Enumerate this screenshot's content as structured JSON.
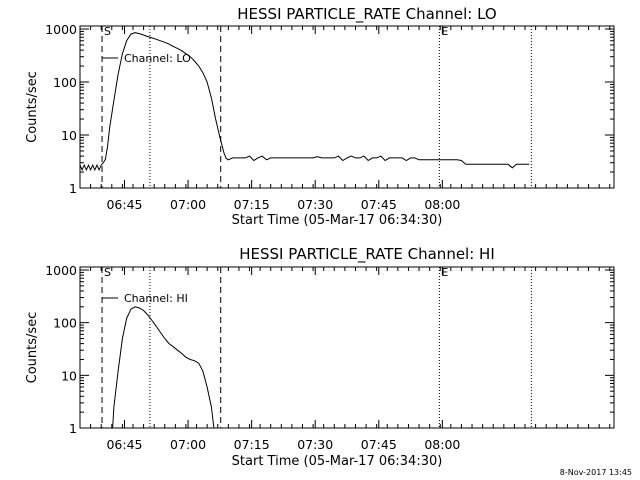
{
  "footer": {
    "timestamp": "8-Nov-2017 13:45"
  },
  "chart_data": [
    {
      "type": "line",
      "title": "HESSI PARTICLE_RATE Channel: LO",
      "xlabel": "Start Time (05-Mar-17 06:34:30)",
      "ylabel": "Counts/sec",
      "yscale": "log",
      "ylim": [
        1,
        1000
      ],
      "xlim_min": [
        0,
        126
      ],
      "x_ticks": [
        {
          "label": "06:45",
          "min": 10.5
        },
        {
          "label": "07:00",
          "min": 25.5
        },
        {
          "label": "07:15",
          "min": 40.5
        },
        {
          "label": "07:30",
          "min": 55.5
        },
        {
          "label": "07:45",
          "min": 70.5
        },
        {
          "label": "08:00",
          "min": 85.5
        }
      ],
      "y_ticks": [
        {
          "label": "1",
          "v": 1
        },
        {
          "label": "10",
          "v": 10
        },
        {
          "label": "100",
          "v": 100
        },
        {
          "label": "1000",
          "v": 1000
        }
      ],
      "legend": "Channel: LO",
      "markers": [
        {
          "label": "S",
          "min": 5.2,
          "style": "dashed"
        },
        {
          "label": "",
          "min": 16.5,
          "style": "dotted"
        },
        {
          "label": "",
          "min": 33.2,
          "style": "dashed"
        },
        {
          "label": "E",
          "min": 84.8,
          "style": "dotted"
        },
        {
          "label": "",
          "min": 106.5,
          "style": "dotted"
        }
      ],
      "series": [
        {
          "x": [
            0,
            0.5,
            1,
            1.5,
            2,
            2.5,
            3,
            3.5,
            4,
            4.5,
            5,
            5.5,
            6,
            6.5,
            7,
            8,
            9,
            10,
            11,
            12,
            13,
            14,
            15,
            16,
            17,
            18,
            19,
            20,
            21,
            22,
            23,
            24,
            25,
            26,
            27,
            28,
            29,
            30,
            31,
            32,
            33,
            34,
            34.5,
            35,
            36,
            37,
            38,
            39,
            40,
            41,
            42,
            43,
            44,
            45,
            46,
            47,
            48,
            49,
            50,
            51,
            52,
            53,
            54,
            55,
            56,
            57,
            58,
            59,
            60,
            61,
            62,
            63,
            64,
            65,
            66,
            67,
            68,
            69,
            70,
            71,
            72,
            73,
            74,
            75,
            76,
            77,
            78,
            79,
            80,
            81,
            82,
            83,
            84,
            85,
            86,
            87,
            88,
            89,
            90,
            91,
            92,
            93,
            94,
            95,
            96,
            97,
            98,
            99,
            100,
            101,
            102,
            103,
            104,
            105,
            106
          ],
          "y": [
            2.7,
            2.2,
            2.7,
            2.2,
            2.7,
            2.2,
            2.7,
            2.2,
            2.7,
            2.2,
            2.7,
            3.0,
            3.5,
            6,
            14,
            45,
            140,
            340,
            600,
            800,
            850,
            820,
            770,
            720,
            680,
            640,
            600,
            560,
            520,
            470,
            430,
            390,
            340,
            300,
            250,
            200,
            150,
            100,
            50,
            20,
            9,
            4.5,
            3.6,
            3.4,
            3.7,
            3.7,
            3.7,
            3.7,
            4.0,
            3.3,
            3.7,
            4.0,
            3.4,
            3.7,
            3.7,
            3.7,
            3.7,
            3.7,
            3.7,
            3.7,
            3.7,
            3.7,
            3.7,
            3.7,
            3.9,
            3.7,
            3.7,
            3.7,
            3.7,
            4.0,
            3.3,
            3.7,
            4.0,
            3.7,
            3.7,
            4.0,
            3.3,
            3.7,
            3.7,
            4.0,
            3.3,
            3.7,
            3.7,
            3.7,
            3.7,
            3.3,
            3.7,
            3.7,
            3.4,
            3.4,
            3.4,
            3.4,
            3.4,
            3.4,
            3.4,
            3.4,
            3.4,
            3.4,
            3.3,
            2.8,
            2.8,
            2.8,
            2.8,
            2.8,
            2.8,
            2.8,
            2.8,
            2.8,
            2.8,
            2.8,
            2.4,
            2.8,
            2.8,
            2.8,
            2.8
          ]
        }
      ]
    },
    {
      "type": "line",
      "title": "HESSI PARTICLE_RATE Channel: HI",
      "xlabel": "Start Time (05-Mar-17 06:34:30)",
      "ylabel": "Counts/sec",
      "yscale": "log",
      "ylim": [
        1,
        1000
      ],
      "xlim_min": [
        0,
        126
      ],
      "x_ticks": [
        {
          "label": "06:45",
          "min": 10.5
        },
        {
          "label": "07:00",
          "min": 25.5
        },
        {
          "label": "07:15",
          "min": 40.5
        },
        {
          "label": "07:30",
          "min": 55.5
        },
        {
          "label": "07:45",
          "min": 70.5
        },
        {
          "label": "08:00",
          "min": 85.5
        }
      ],
      "y_ticks": [
        {
          "label": "1",
          "v": 1
        },
        {
          "label": "10",
          "v": 10
        },
        {
          "label": "100",
          "v": 100
        },
        {
          "label": "1000",
          "v": 1000
        }
      ],
      "legend": "Channel: HI",
      "markers": [
        {
          "label": "S",
          "min": 5.2,
          "style": "dashed"
        },
        {
          "label": "",
          "min": 16.5,
          "style": "dotted"
        },
        {
          "label": "",
          "min": 33.2,
          "style": "dashed"
        },
        {
          "label": "E",
          "min": 84.8,
          "style": "dotted"
        },
        {
          "label": "",
          "min": 106.5,
          "style": "dotted"
        }
      ],
      "series": [
        {
          "x": [
            7.7,
            8,
            9,
            10,
            11,
            12,
            13,
            14,
            15,
            16,
            17,
            18,
            19,
            20,
            21,
            22,
            23,
            24,
            25,
            26,
            27,
            28,
            29,
            30,
            31,
            31.6
          ],
          "y": [
            1,
            2.5,
            12,
            50,
            120,
            180,
            200,
            190,
            170,
            140,
            110,
            85,
            65,
            50,
            40,
            35,
            30,
            26,
            22,
            20,
            19,
            17,
            12,
            6,
            2.5,
            1
          ]
        }
      ]
    }
  ]
}
